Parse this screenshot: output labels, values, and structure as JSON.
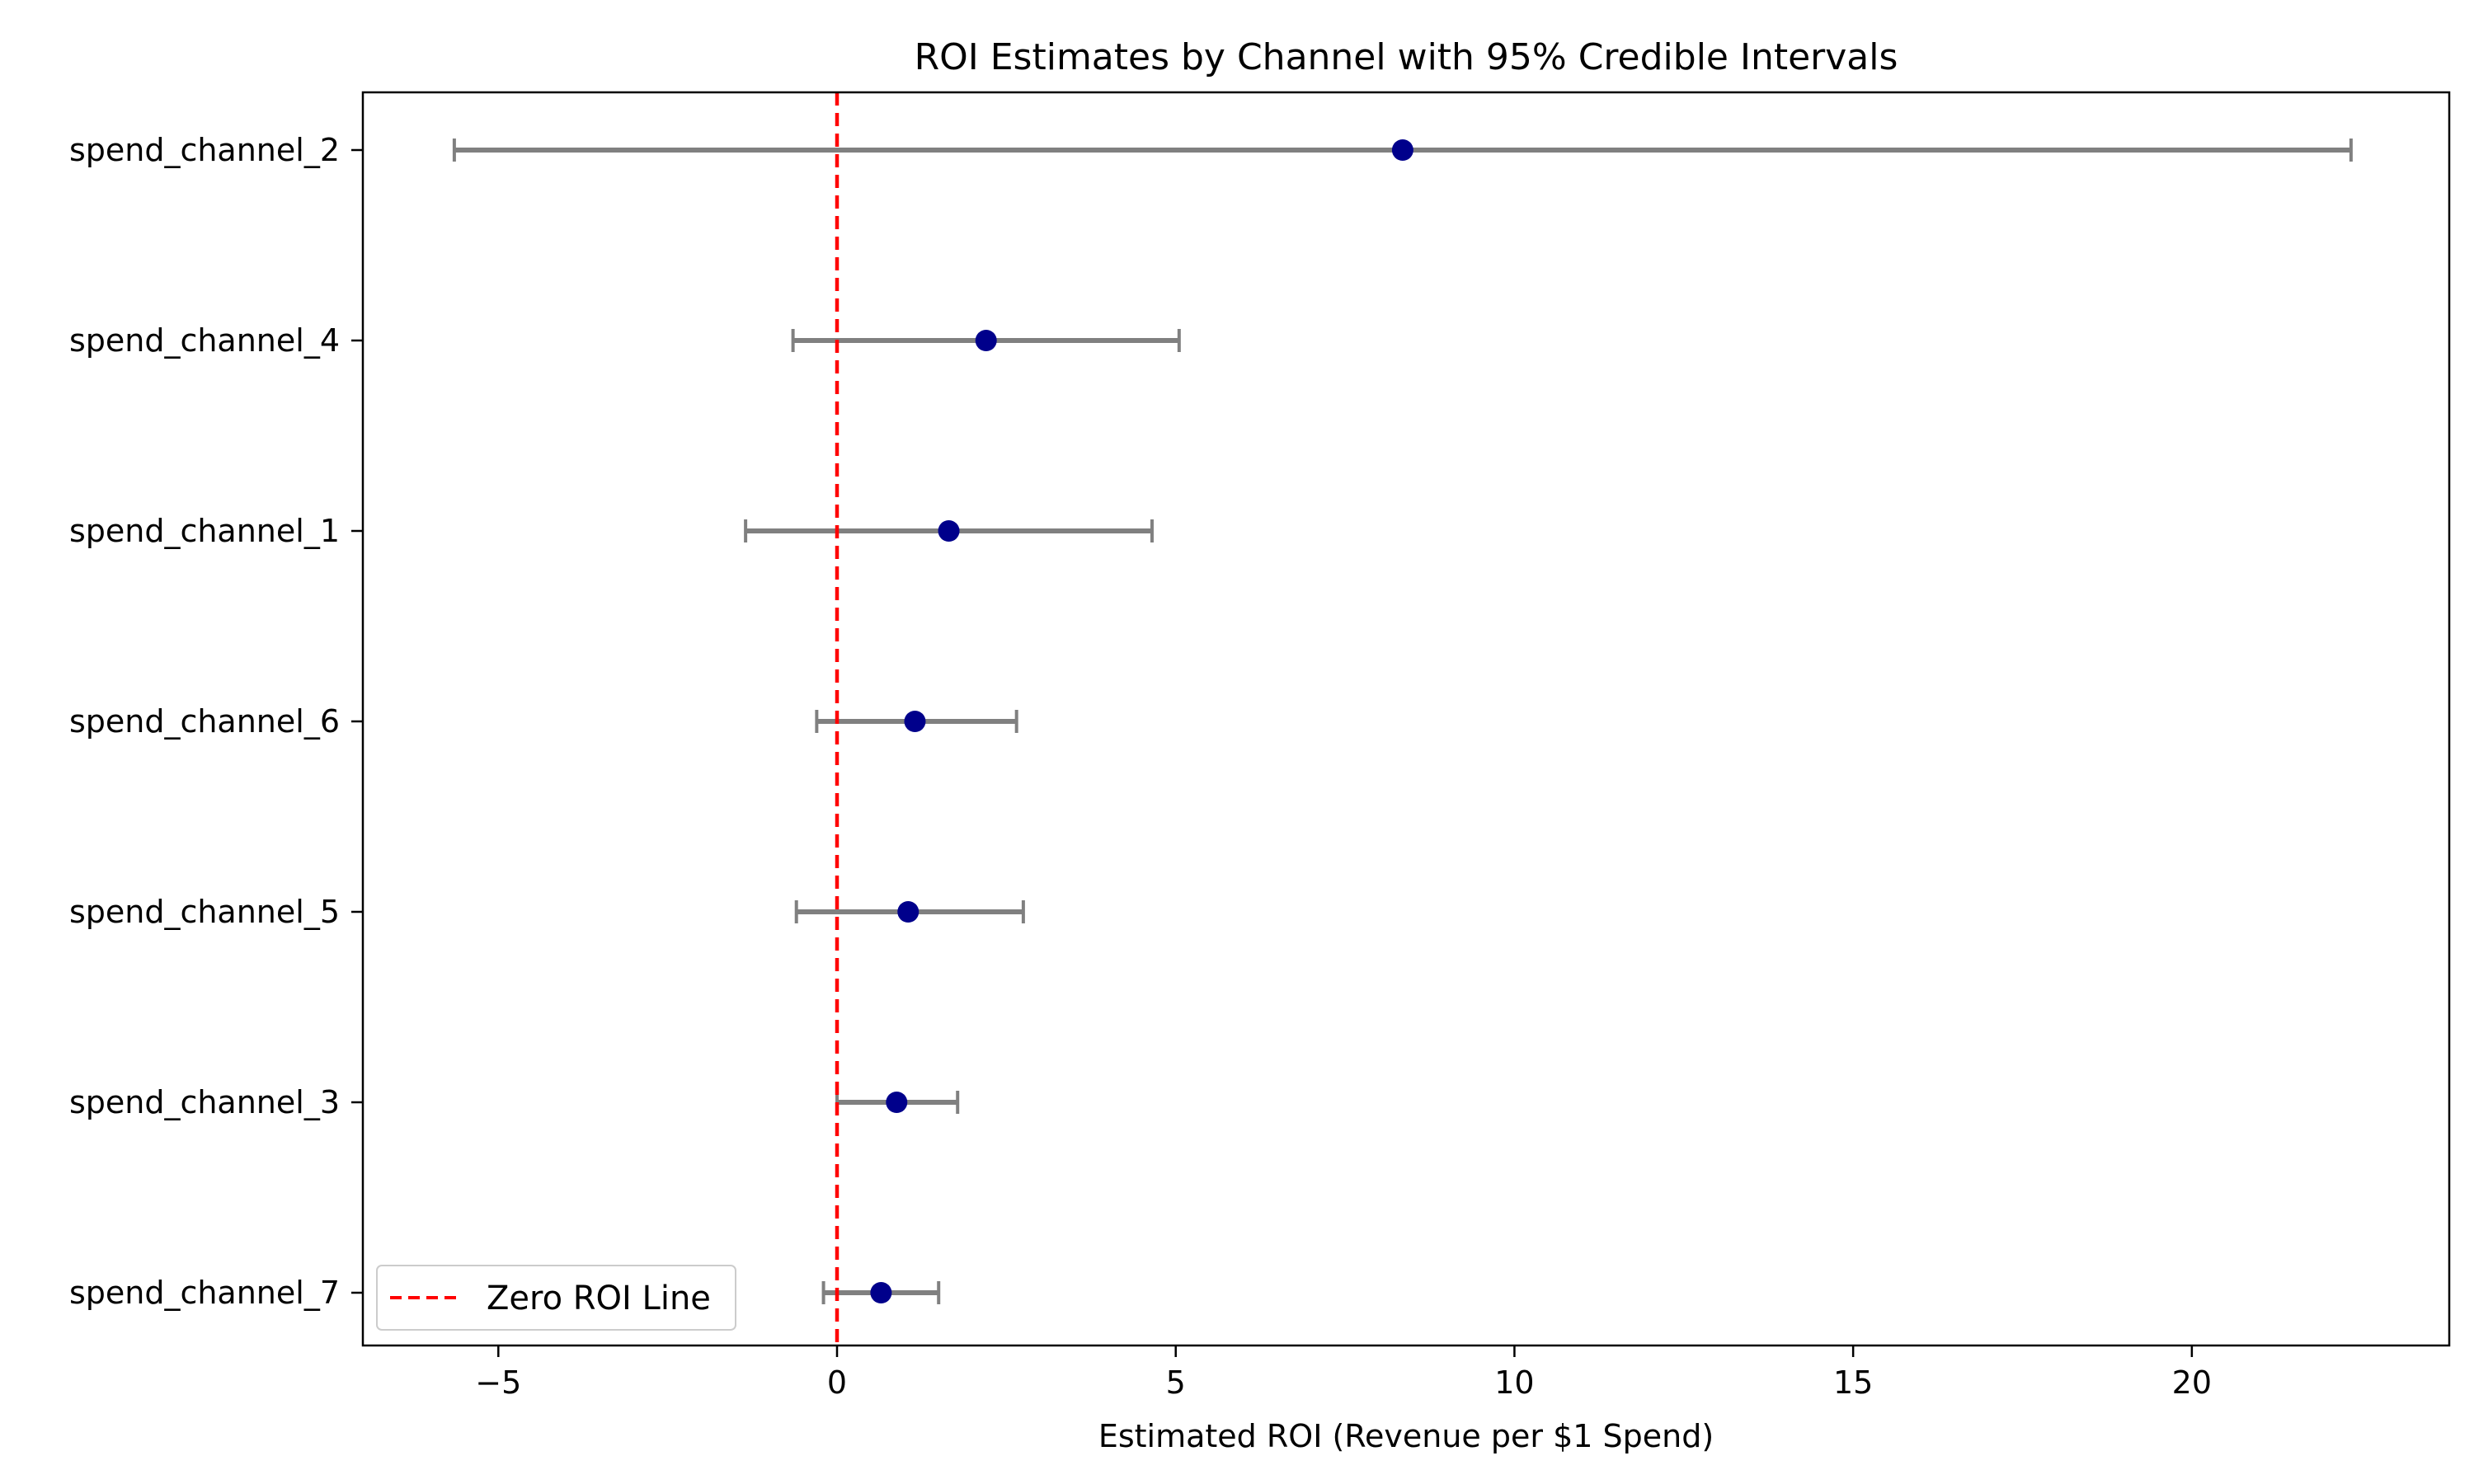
{
  "chart_data": {
    "type": "scatter",
    "title": "ROI Estimates by Channel with 95% Credible Intervals",
    "xlabel": "Estimated ROI (Revenue per $1 Spend)",
    "ylabel": "",
    "xlim": [
      -7.0,
      23.8
    ],
    "xticks": [
      -5,
      0,
      5,
      10,
      15,
      20
    ],
    "categories": [
      "spend_channel_2",
      "spend_channel_4",
      "spend_channel_1",
      "spend_channel_6",
      "spend_channel_5",
      "spend_channel_3",
      "spend_channel_7"
    ],
    "series": [
      {
        "points": [
          {
            "label": "spend_channel_2",
            "estimate": 8.35,
            "lower": -5.65,
            "upper": 22.35
          },
          {
            "label": "spend_channel_4",
            "estimate": 2.2,
            "lower": -0.65,
            "upper": 5.05
          },
          {
            "label": "spend_channel_1",
            "estimate": 1.65,
            "lower": -1.35,
            "upper": 4.65
          },
          {
            "label": "spend_channel_6",
            "estimate": 1.15,
            "lower": -0.3,
            "upper": 2.65
          },
          {
            "label": "spend_channel_5",
            "estimate": 1.05,
            "lower": -0.6,
            "upper": 2.75
          },
          {
            "label": "spend_channel_3",
            "estimate": 0.88,
            "lower": 0.0,
            "upper": 1.78
          },
          {
            "label": "spend_channel_7",
            "estimate": 0.65,
            "lower": -0.2,
            "upper": 1.5
          }
        ]
      }
    ],
    "reference_line": {
      "x": 0,
      "label": "Zero ROI Line",
      "color": "#ff0000",
      "style": "dashed"
    },
    "legend": {
      "position": "bottom-left",
      "entries": [
        "Zero ROI Line"
      ]
    },
    "grid": false,
    "colors": {
      "point": "#00008b",
      "errorbar": "#808080",
      "reference": "#ff0000"
    }
  }
}
